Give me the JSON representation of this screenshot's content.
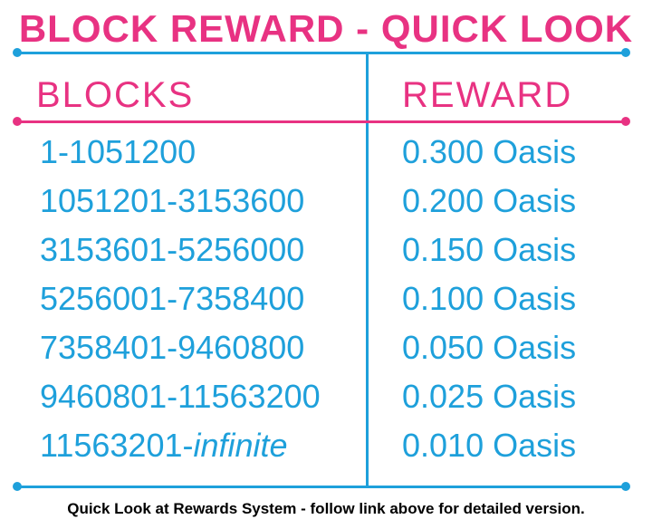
{
  "title": "BLOCK REWARD - QUICK LOOK",
  "colors": {
    "pink": "#e83282",
    "blue": "#1ea0db"
  },
  "table": {
    "headers": {
      "blocks": "BLOCKS",
      "reward": "REWARD"
    },
    "rows": [
      {
        "blocks_start": "1-1051200",
        "blocks_end": "",
        "reward": "0.300 Oasis"
      },
      {
        "blocks_start": "1051201-3153600",
        "blocks_end": "",
        "reward": "0.200 Oasis"
      },
      {
        "blocks_start": "3153601-5256000",
        "blocks_end": "",
        "reward": "0.150 Oasis"
      },
      {
        "blocks_start": "5256001-7358400",
        "blocks_end": "",
        "reward": "0.100 Oasis"
      },
      {
        "blocks_start": "7358401-9460800",
        "blocks_end": "",
        "reward": "0.050 Oasis"
      },
      {
        "blocks_start": "9460801-11563200",
        "blocks_end": "",
        "reward": "0.025 Oasis"
      },
      {
        "blocks_start": "11563201-",
        "blocks_end": "infinite",
        "reward": "0.010 Oasis"
      }
    ]
  },
  "caption": "Quick Look at Rewards System - follow link above for detailed version."
}
